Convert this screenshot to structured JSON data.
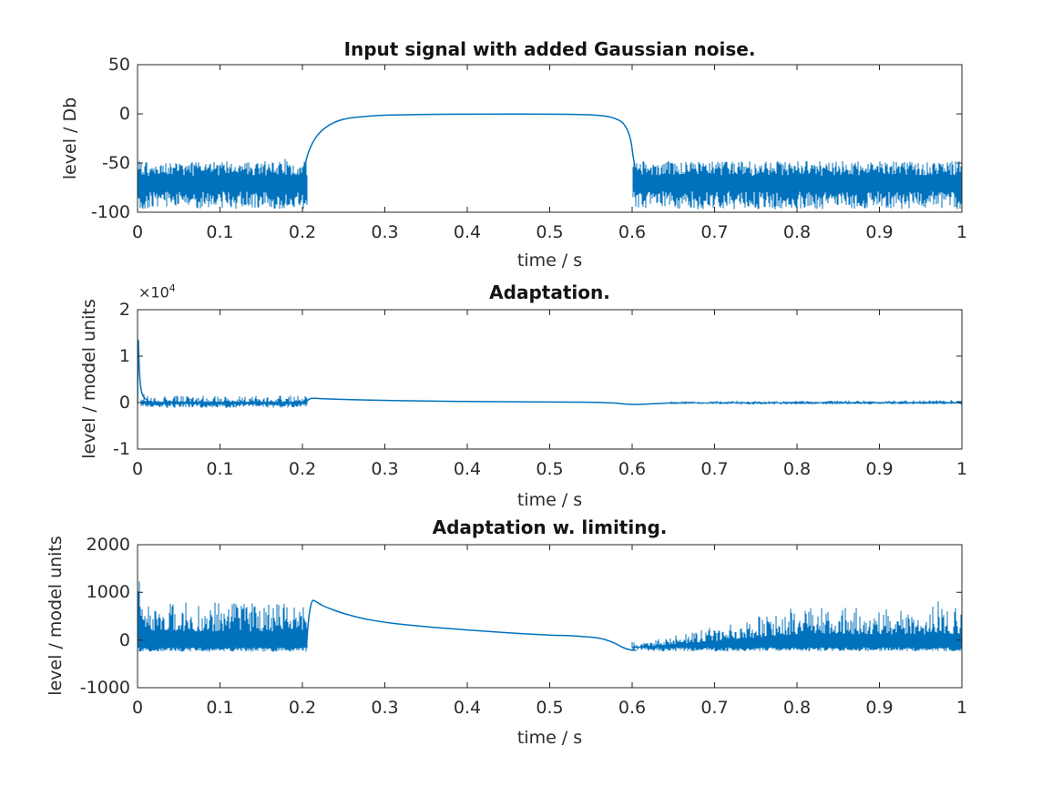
{
  "figure": {
    "background": "#ffffff",
    "line_color": "#0072bd",
    "axis_color": "#262626",
    "tick_label_color": "#2b2b2b",
    "title_color": "#141414"
  },
  "chart_data": [
    {
      "type": "line",
      "title": "Input signal with added Gaussian noise.",
      "xlabel": "time / s",
      "ylabel": "level / Db",
      "xlim": [
        0,
        1
      ],
      "ylim": [
        -100,
        50
      ],
      "xtick_values": [
        0,
        0.1,
        0.2,
        0.3,
        0.4,
        0.5,
        0.6,
        0.7,
        0.8,
        0.9,
        1
      ],
      "xtick_labels": [
        "0",
        "0.1",
        "0.2",
        "0.3",
        "0.4",
        "0.5",
        "0.6",
        "0.7",
        "0.8",
        "0.9",
        "1"
      ],
      "ytick_values": [
        50,
        0,
        -50,
        -100
      ],
      "ytick_labels": [
        "50",
        "0",
        "-50",
        "-100"
      ],
      "grid": false,
      "legend": null,
      "description": "Gaussian noise floor between about -95 and -50 dB from 0 to 0.2 s and from 0.6 to 1 s; smooth tone envelope rises at 0.2 s to 0 dB plateau, falls back into noise at 0.6 s.",
      "segments": [
        {
          "kind": "noise",
          "seed": 101,
          "t": [
            0,
            0.2055
          ],
          "lo": [
            -97,
            -79
          ],
          "hi": [
            [
              -63,
              -48
            ]
          ],
          "hipow": 0.85,
          "spike": {
            "chance": 0.02,
            "extra": 5
          }
        },
        {
          "kind": "curve",
          "points": [
            [
              0.203,
              -52
            ],
            [
              0.207,
              -40
            ],
            [
              0.212,
              -30
            ],
            [
              0.219,
              -21
            ],
            [
              0.228,
              -14
            ],
            [
              0.238,
              -9
            ],
            [
              0.25,
              -5.5
            ],
            [
              0.265,
              -3.5
            ],
            [
              0.285,
              -2
            ],
            [
              0.31,
              -1.2
            ],
            [
              0.35,
              -0.6
            ],
            [
              0.4,
              -0.35
            ],
            [
              0.45,
              -0.3
            ],
            [
              0.5,
              -0.35
            ],
            [
              0.53,
              -0.6
            ],
            [
              0.55,
              -1
            ],
            [
              0.562,
              -1.8
            ],
            [
              0.572,
              -3
            ],
            [
              0.58,
              -5
            ],
            [
              0.587,
              -8
            ],
            [
              0.592,
              -13
            ],
            [
              0.596,
              -20
            ],
            [
              0.599,
              -30
            ],
            [
              0.601,
              -42
            ],
            [
              0.603,
              -52
            ]
          ]
        },
        {
          "kind": "noise",
          "seed": 102,
          "t": [
            0.601,
            1
          ],
          "lo": [
            -97,
            -79
          ],
          "hi": [
            [
              -63,
              -48
            ]
          ],
          "hipow": 0.85,
          "spike": {
            "chance": 0.02,
            "extra": 5
          }
        }
      ]
    },
    {
      "type": "line",
      "title": "Adaptation.",
      "xlabel": "time / s",
      "ylabel": "level / model units",
      "y_exponent": {
        "base": "×10",
        "power": "4"
      },
      "xlim": [
        0,
        1
      ],
      "ylim": [
        -10000,
        20000
      ],
      "xtick_values": [
        0,
        0.1,
        0.2,
        0.3,
        0.4,
        0.5,
        0.6,
        0.7,
        0.8,
        0.9,
        1
      ],
      "xtick_labels": [
        "0",
        "0.1",
        "0.2",
        "0.3",
        "0.4",
        "0.5",
        "0.6",
        "0.7",
        "0.8",
        "0.9",
        "1"
      ],
      "ytick_values": [
        20000,
        10000,
        0,
        -10000
      ],
      "ytick_labels": [
        "2",
        "1",
        "0",
        "-1"
      ],
      "grid": false,
      "legend": null,
      "description": "Startup transient spikes to about 1.3e4 at t=0, noisy band near 0 until 0.2 s, small bump ~1e3 at 0.2 s decaying to 0, slight dip ~-4e2 near 0.6 s, then low-level noise to 1 s.",
      "segments": [
        {
          "kind": "noise",
          "seed": 201,
          "t": [
            0.004,
            0.2055
          ],
          "lo": [
            -1100,
            -250
          ],
          "hi": [
            [
              400,
              2500
            ],
            [
              150,
              1500
            ]
          ],
          "ramp": [
            0,
            0.02
          ],
          "hipow": 2.2,
          "spike": {
            "chance": 0.03,
            "extra": 700
          }
        },
        {
          "kind": "curve",
          "points": [
            [
              0,
              100
            ],
            [
              0.0008,
              13000
            ],
            [
              0.0015,
              10000
            ],
            [
              0.0025,
              6000
            ],
            [
              0.004,
              3200
            ],
            [
              0.006,
              1700
            ],
            [
              0.009,
              900
            ],
            [
              0.013,
              500
            ]
          ]
        },
        {
          "kind": "curve",
          "points": [
            [
              0.205,
              300
            ],
            [
              0.209,
              800
            ],
            [
              0.213,
              950
            ],
            [
              0.222,
              870
            ],
            [
              0.24,
              730
            ],
            [
              0.27,
              580
            ],
            [
              0.31,
              440
            ],
            [
              0.36,
              320
            ],
            [
              0.42,
              220
            ],
            [
              0.48,
              150
            ],
            [
              0.53,
              90
            ],
            [
              0.56,
              30
            ],
            [
              0.572,
              -50
            ],
            [
              0.582,
              -160
            ],
            [
              0.59,
              -280
            ],
            [
              0.598,
              -370
            ],
            [
              0.606,
              -390
            ],
            [
              0.615,
              -330
            ],
            [
              0.628,
              -220
            ],
            [
              0.643,
              -100
            ],
            [
              0.655,
              -40
            ]
          ]
        },
        {
          "kind": "noise",
          "seed": 202,
          "t": [
            0.648,
            1
          ],
          "lo": [
            -380,
            -90
          ],
          "hi": [
            [
              0,
              280
            ],
            [
              120,
              520
            ]
          ],
          "ramp": [
            0.65,
            1.0
          ],
          "hipow": 1.8,
          "spike": {
            "chance": 0.02,
            "extra": 250
          }
        }
      ]
    },
    {
      "type": "line",
      "title": "Adaptation w. limiting.",
      "xlabel": "time / s",
      "ylabel": "level / model units",
      "xlim": [
        0,
        1
      ],
      "ylim": [
        -1000,
        2000
      ],
      "xtick_values": [
        0,
        0.1,
        0.2,
        0.3,
        0.4,
        0.5,
        0.6,
        0.7,
        0.8,
        0.9,
        1
      ],
      "xtick_labels": [
        "0",
        "0.1",
        "0.2",
        "0.3",
        "0.4",
        "0.5",
        "0.6",
        "0.7",
        "0.8",
        "0.9",
        "1"
      ],
      "ytick_values": [
        2000,
        1000,
        0,
        -1000
      ],
      "ytick_labels": [
        "2000",
        "1000",
        "0",
        "-1000"
      ],
      "grid": false,
      "legend": null,
      "description": "Spiky noise (lower envelope ~-220, spikes to ~1500 at start, typically 300-800) until 0.2 s; smooth bump to ~840 at 0.21 s decaying to ~90 by 0.5 s, dipping to ~-220 at 0.6 s; noise band grows again from 0.6 s with spikes up to ~800 by 1 s.",
      "segments": [
        {
          "kind": "noise",
          "seed": 301,
          "t": [
            0,
            0.2055
          ],
          "lo": [
            -245,
            -160
          ],
          "hi": [
            [
              700,
              1500
            ],
            [
              180,
              790
            ]
          ],
          "ramp": [
            0,
            0.012
          ],
          "hipow": 1.6,
          "spike": {
            "chance": 0.04,
            "extra": 250
          }
        },
        {
          "kind": "curve",
          "points": [
            [
              0.205,
              -150
            ],
            [
              0.2065,
              250
            ],
            [
              0.209,
              620
            ],
            [
              0.212,
              820
            ],
            [
              0.217,
              800
            ],
            [
              0.225,
              720
            ],
            [
              0.24,
              615
            ],
            [
              0.26,
              510
            ],
            [
              0.28,
              430
            ],
            [
              0.31,
              350
            ],
            [
              0.35,
              280
            ],
            [
              0.39,
              225
            ],
            [
              0.43,
              175
            ],
            [
              0.47,
              130
            ],
            [
              0.5,
              105
            ],
            [
              0.53,
              85
            ],
            [
              0.55,
              60
            ],
            [
              0.565,
              20
            ],
            [
              0.578,
              -60
            ],
            [
              0.588,
              -150
            ],
            [
              0.597,
              -205
            ],
            [
              0.605,
              -215
            ]
          ]
        },
        {
          "kind": "noise",
          "seed": 302,
          "t": [
            0.6,
            1
          ],
          "lo": [
            -235,
            -155
          ],
          "hi": [
            [
              -140,
              -40
            ],
            [
              120,
              700
            ]
          ],
          "ramp": [
            0.615,
            0.8
          ],
          "hipow": 1.7,
          "spike": {
            "chance": 0.03,
            "extra": 200
          }
        }
      ]
    }
  ]
}
